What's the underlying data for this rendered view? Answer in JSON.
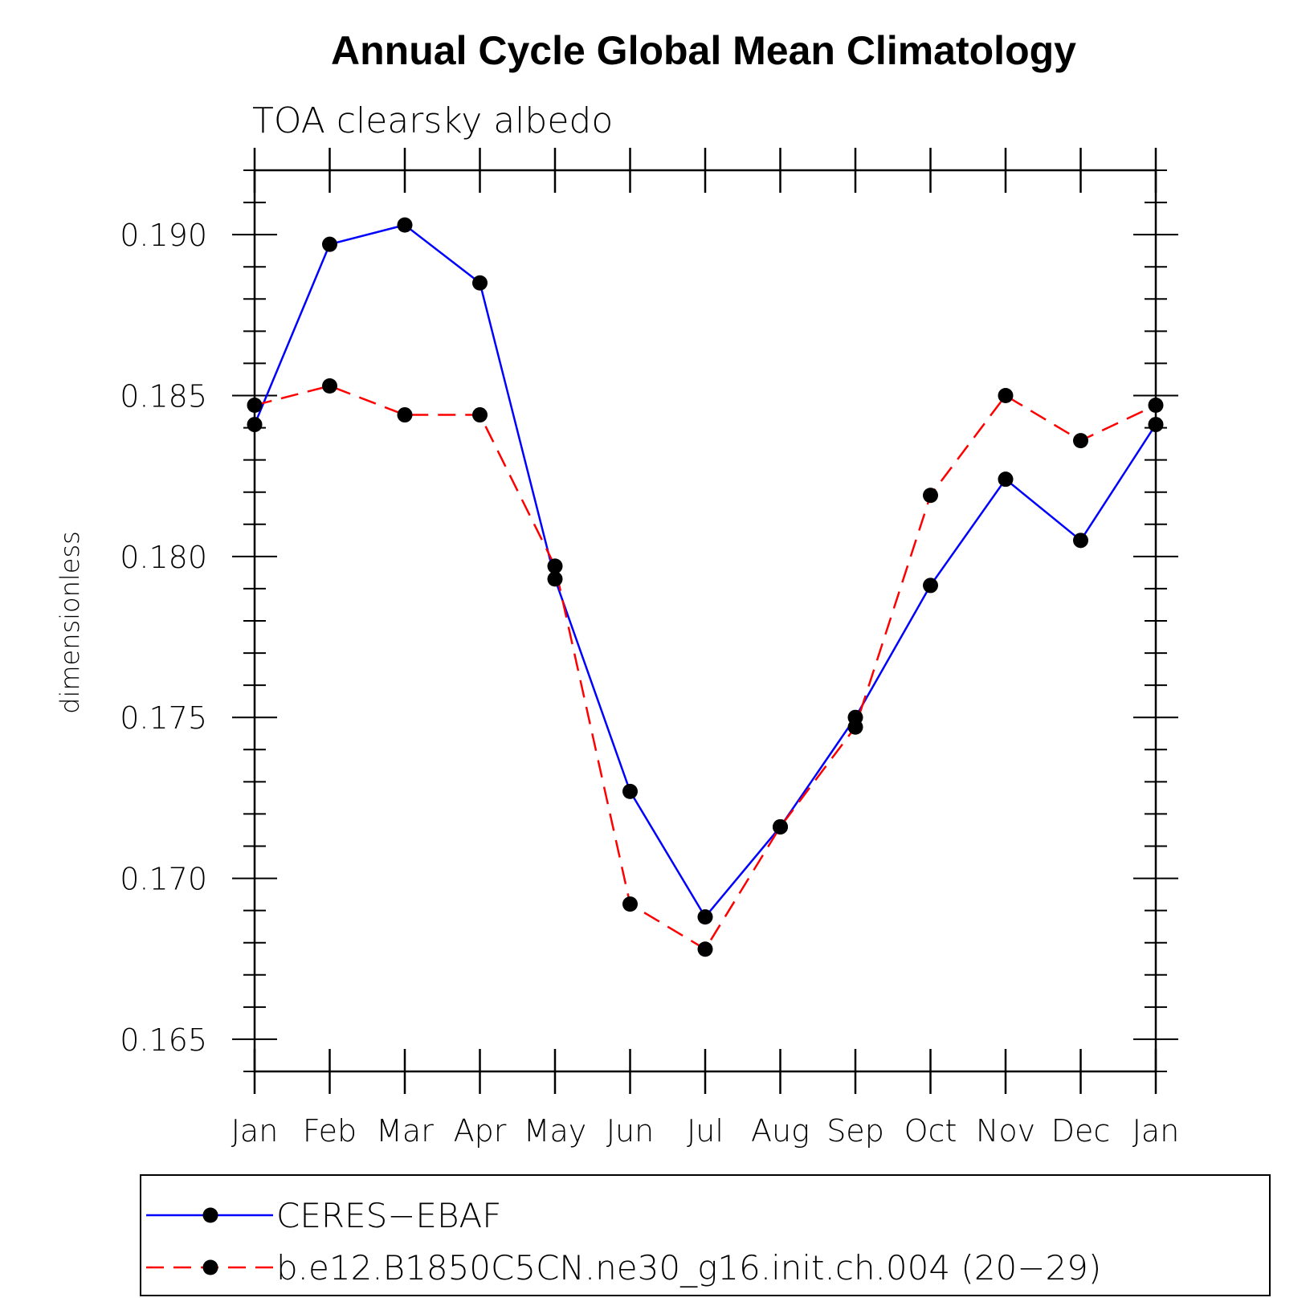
{
  "chart_data": {
    "type": "line",
    "title": "Annual Cycle Global Mean Climatology",
    "subtitle": "TOA clearsky albedo",
    "ylabel": "dimensionless",
    "xlabel": "",
    "categories": [
      "Jan",
      "Feb",
      "Mar",
      "Apr",
      "May",
      "Jun",
      "Jul",
      "Aug",
      "Sep",
      "Oct",
      "Nov",
      "Dec",
      "Jan"
    ],
    "ylim": [
      0.164,
      0.192
    ],
    "yticks": [
      0.165,
      0.17,
      0.175,
      0.18,
      0.185,
      0.19
    ],
    "ytick_labels": [
      "0.165",
      "0.170",
      "0.175",
      "0.180",
      "0.185",
      "0.190"
    ],
    "series": [
      {
        "name": "CERES−EBAF",
        "color": "#0000ff",
        "dash": "solid",
        "values": [
          0.1841,
          0.1897,
          0.1903,
          0.1885,
          0.1793,
          0.1727,
          0.1688,
          0.1716,
          0.175,
          0.1791,
          0.1824,
          0.1805,
          0.1841
        ]
      },
      {
        "name": "b.e12.B1850C5CN.ne30_g16.init.ch.004 (20−29)",
        "color": "#ff0000",
        "dash": "dashed",
        "values": [
          0.1847,
          0.1853,
          0.1844,
          0.1844,
          0.1797,
          0.1692,
          0.1678,
          0.1716,
          0.1747,
          0.1819,
          0.185,
          0.1836,
          0.1847
        ]
      }
    ],
    "legend_position": "bottom",
    "grid": false
  }
}
